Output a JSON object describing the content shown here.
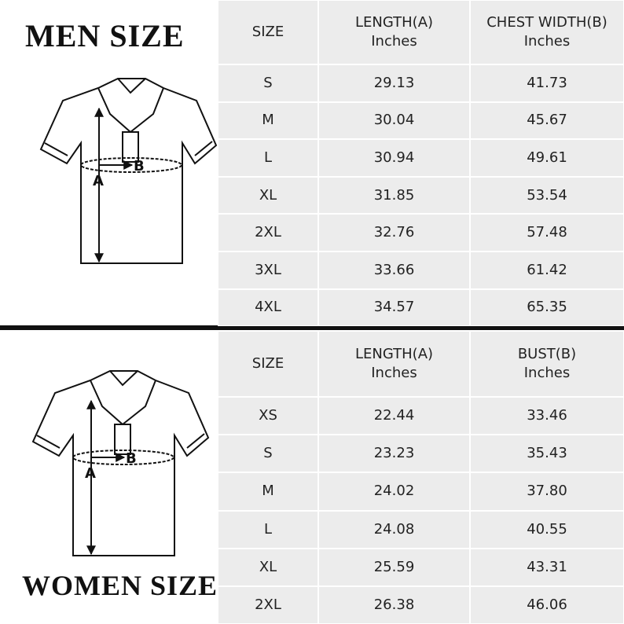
{
  "men": {
    "title": "MEN SIZE",
    "diagram": {
      "a": "A",
      "b": "B"
    },
    "table": {
      "header": [
        [
          "SIZE"
        ],
        [
          "LENGTH(A)",
          "Inches"
        ],
        [
          "CHEST WIDTH(B)",
          "Inches"
        ]
      ],
      "rows": [
        [
          "S",
          "29.13",
          "41.73"
        ],
        [
          "M",
          "30.04",
          "45.67"
        ],
        [
          "L",
          "30.94",
          "49.61"
        ],
        [
          "XL",
          "31.85",
          "53.54"
        ],
        [
          "2XL",
          "32.76",
          "57.48"
        ],
        [
          "3XL",
          "33.66",
          "61.42"
        ],
        [
          "4XL",
          "34.57",
          "65.35"
        ]
      ]
    }
  },
  "women": {
    "title": "WOMEN SIZE",
    "diagram": {
      "a": "A",
      "b": "B"
    },
    "table": {
      "header": [
        [
          "SIZE"
        ],
        [
          "LENGTH(A)",
          "Inches"
        ],
        [
          "BUST(B)",
          "Inches"
        ]
      ],
      "rows": [
        [
          "XS",
          "22.44",
          "33.46"
        ],
        [
          "S",
          "23.23",
          "35.43"
        ],
        [
          "M",
          "24.02",
          "37.80"
        ],
        [
          "L",
          "24.08",
          "40.55"
        ],
        [
          "XL",
          "25.59",
          "43.31"
        ],
        [
          "2XL",
          "26.38",
          "46.06"
        ]
      ]
    }
  }
}
